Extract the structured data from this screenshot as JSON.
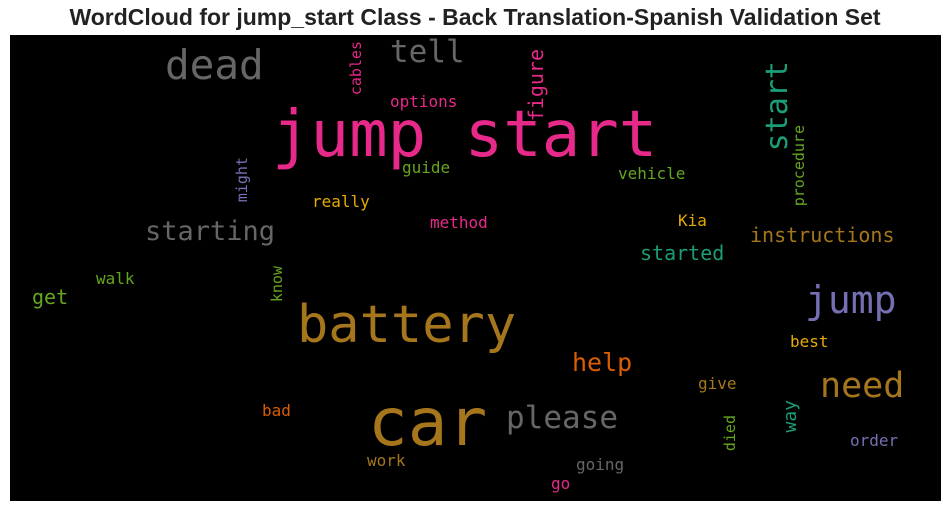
{
  "title": "WordCloud for jump_start Class - Back Translation-Spanish Validation Set",
  "chart_data": {
    "type": "wordcloud",
    "background": "#000000",
    "words": [
      {
        "text": "jump start",
        "color": "#e7298a",
        "vertical": false
      },
      {
        "text": "car",
        "color": "#a6761d",
        "vertical": false
      },
      {
        "text": "battery",
        "color": "#a6761d",
        "vertical": false
      },
      {
        "text": "dead",
        "color": "#666666",
        "vertical": false
      },
      {
        "text": "jump",
        "color": "#7570b3",
        "vertical": false
      },
      {
        "text": "need",
        "color": "#a6761d",
        "vertical": false
      },
      {
        "text": "please",
        "color": "#666666",
        "vertical": false
      },
      {
        "text": "tell",
        "color": "#666666",
        "vertical": false
      },
      {
        "text": "start",
        "color": "#1b9e77",
        "vertical": true
      },
      {
        "text": "starting",
        "color": "#666666",
        "vertical": false
      },
      {
        "text": "help",
        "color": "#d95f02",
        "vertical": false
      },
      {
        "text": "figure",
        "color": "#e7298a",
        "vertical": true
      },
      {
        "text": "instructions",
        "color": "#a6761d",
        "vertical": false
      },
      {
        "text": "started",
        "color": "#1b9e77",
        "vertical": false
      },
      {
        "text": "get",
        "color": "#66a61e",
        "vertical": false
      },
      {
        "text": "way",
        "color": "#1b9e77",
        "vertical": true
      },
      {
        "text": "options",
        "color": "#e7298a",
        "vertical": false
      },
      {
        "text": "cables",
        "color": "#e7298a",
        "vertical": true
      },
      {
        "text": "guide",
        "color": "#66a61e",
        "vertical": false
      },
      {
        "text": "vehicle",
        "color": "#66a61e",
        "vertical": false
      },
      {
        "text": "might",
        "color": "#7570b3",
        "vertical": true
      },
      {
        "text": "procedure",
        "color": "#66a61e",
        "vertical": true
      },
      {
        "text": "really",
        "color": "#e6ab02",
        "vertical": false
      },
      {
        "text": "method",
        "color": "#e7298a",
        "vertical": false
      },
      {
        "text": "Kia",
        "color": "#e6ab02",
        "vertical": false
      },
      {
        "text": "walk",
        "color": "#66a61e",
        "vertical": false
      },
      {
        "text": "know",
        "color": "#66a61e",
        "vertical": true
      },
      {
        "text": "best",
        "color": "#e6ab02",
        "vertical": false
      },
      {
        "text": "give",
        "color": "#a6761d",
        "vertical": false
      },
      {
        "text": "bad",
        "color": "#d95f02",
        "vertical": false
      },
      {
        "text": "died",
        "color": "#66a61e",
        "vertical": true
      },
      {
        "text": "order",
        "color": "#7570b3",
        "vertical": false
      },
      {
        "text": "work",
        "color": "#a6761d",
        "vertical": false
      },
      {
        "text": "going",
        "color": "#666666",
        "vertical": false
      },
      {
        "text": "go",
        "color": "#e7298a",
        "vertical": false
      }
    ]
  }
}
